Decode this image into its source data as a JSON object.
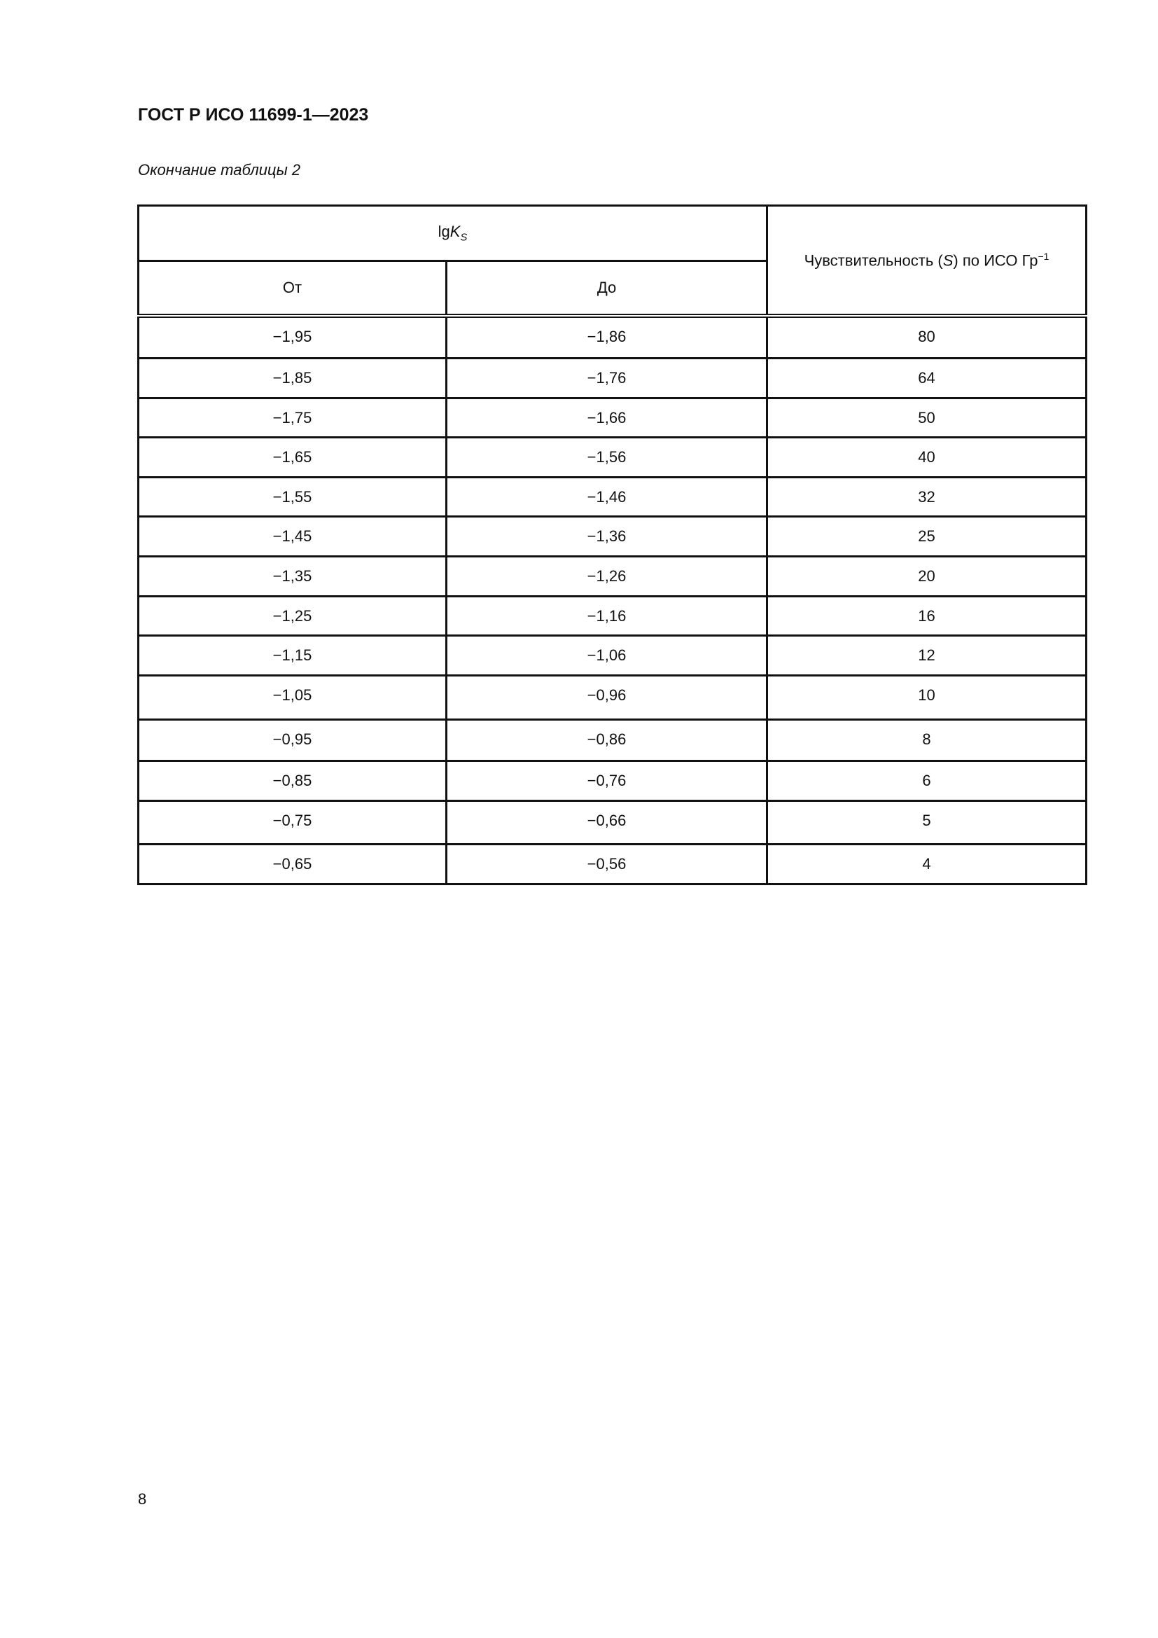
{
  "header": {
    "title": "ГОСТ Р ИСО 11699-1—2023"
  },
  "caption": "Окончание таблицы 2",
  "table": {
    "group_header": {
      "prefix": "lg",
      "var": "K",
      "sub": "S"
    },
    "col_from": "От",
    "col_to": "До",
    "col_sens": {
      "text_before": "Чувствительность (",
      "var": "S",
      "text_after": ") по ИСО Гр",
      "sup": "−1"
    },
    "rows": [
      {
        "from": "−1,95",
        "to": "−1,86",
        "s": "80"
      },
      {
        "from": "−1,85",
        "to": "−1,76",
        "s": "64"
      },
      {
        "from": "−1,75",
        "to": "−1,66",
        "s": "50"
      },
      {
        "from": "−1,65",
        "to": "−1,56",
        "s": "40"
      },
      {
        "from": "−1,55",
        "to": "−1,46",
        "s": "32"
      },
      {
        "from": "−1,45",
        "to": "−1,36",
        "s": "25"
      },
      {
        "from": "−1,35",
        "to": "−1,26",
        "s": "20"
      },
      {
        "from": "−1,25",
        "to": "−1,16",
        "s": "16"
      },
      {
        "from": "−1,15",
        "to": "−1,06",
        "s": "12"
      },
      {
        "from": "−1,05",
        "to": "−0,96",
        "s": "10"
      },
      {
        "from": "−0,95",
        "to": "−0,86",
        "s": "8"
      },
      {
        "from": "−0,85",
        "to": "−0,76",
        "s": "6"
      },
      {
        "from": "−0,75",
        "to": "−0,66",
        "s": "5"
      },
      {
        "from": "−0,65",
        "to": "−0,56",
        "s": "4"
      }
    ]
  },
  "page_number": "8"
}
